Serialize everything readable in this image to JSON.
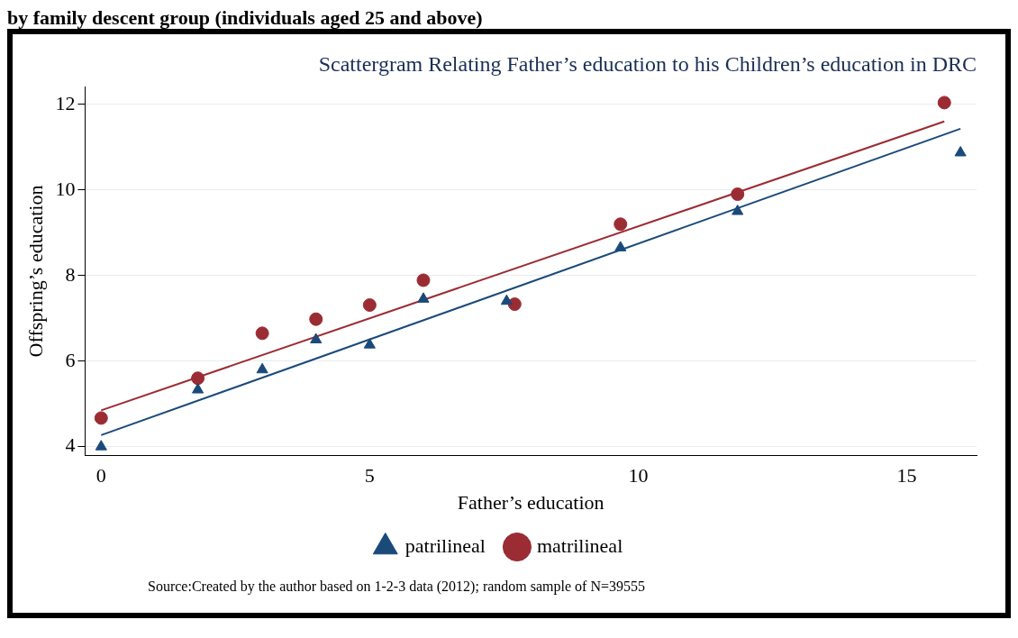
{
  "chart_data": {
    "type": "scatter",
    "title": "Scattergram Relating Father’s education to his Children’s education in DRC",
    "xlabel": "Father’s education",
    "ylabel": "Offspring’s education",
    "annotations": [
      "by family descent group (individuals aged 25 and above)",
      "Source:Created by the author based on 1-2-3 data (2012); random sample of N=39555"
    ],
    "series": [
      {
        "name": "patrilineal",
        "marker": "triangle",
        "color": "#1a4a7a",
        "x": [
          0,
          1.8,
          3,
          4,
          5,
          6,
          7.55,
          9.67,
          11.85,
          16
        ],
        "values": [
          4.0,
          5.33,
          5.8,
          6.5,
          6.38,
          7.45,
          7.4,
          8.65,
          9.5,
          10.87
        ]
      },
      {
        "name": "matrilineal",
        "marker": "circle",
        "color": "#9b2c33",
        "x": [
          0,
          1.8,
          3,
          4,
          5,
          6,
          7.7,
          9.67,
          11.85,
          15.7
        ],
        "values": [
          4.67,
          5.6,
          6.65,
          6.98,
          7.31,
          7.89,
          7.33,
          9.2,
          9.9,
          12.04
        ]
      },
      {
        "type": "line",
        "color": "#1a4a7a",
        "x": [
          0,
          16
        ],
        "values": [
          4.27,
          11.43
        ]
      },
      {
        "type": "line",
        "color": "#9b2c33",
        "x": [
          0,
          15.7
        ],
        "values": [
          4.85,
          11.6
        ]
      }
    ],
    "xlim": [
      -0.3,
      16.3
    ],
    "xticks": [
      0,
      5,
      10,
      15
    ],
    "ylim": [
      3.8,
      12.4
    ],
    "yticks": [
      4,
      6,
      8,
      10,
      12
    ],
    "grid": "y",
    "legend": "bottom"
  }
}
